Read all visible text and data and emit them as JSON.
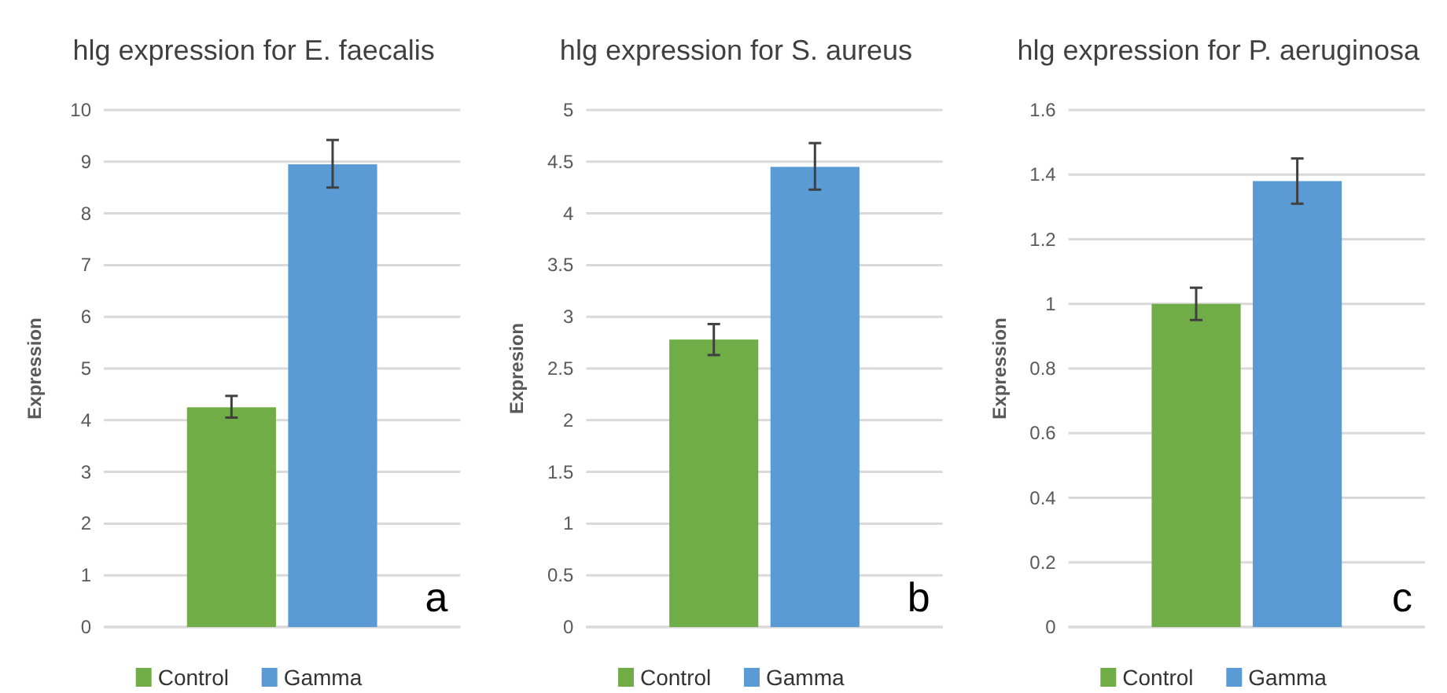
{
  "chart_data": [
    {
      "type": "bar",
      "title": "hlg expression for E. faecalis",
      "ylabel": "Expression",
      "categories": [
        null
      ],
      "series": [
        {
          "name": "Control",
          "color": "#70ad47",
          "values": [
            4.25
          ],
          "errors": [
            [
              4.05,
              4.47
            ]
          ]
        },
        {
          "name": "Gamma",
          "color": "#5b9bd5",
          "values": [
            8.95
          ],
          "errors": [
            [
              8.5,
              9.42
            ]
          ]
        }
      ],
      "ylim": [
        0,
        10
      ],
      "yticks": [
        0,
        1,
        2,
        3,
        4,
        5,
        6,
        7,
        8,
        9,
        10
      ],
      "grid": "y",
      "legend": "bottom",
      "annotations": [
        "a"
      ]
    },
    {
      "type": "bar",
      "title": "hlg expression for S. aureus",
      "ylabel": "Expresion",
      "categories": [
        null
      ],
      "series": [
        {
          "name": "Control",
          "color": "#70ad47",
          "values": [
            2.78
          ],
          "errors": [
            [
              2.63,
              2.93
            ]
          ]
        },
        {
          "name": "Gamma",
          "color": "#5b9bd5",
          "values": [
            4.45
          ],
          "errors": [
            [
              4.23,
              4.68
            ]
          ]
        }
      ],
      "ylim": [
        0,
        5
      ],
      "yticks": [
        0,
        0.5,
        1,
        1.5,
        2,
        2.5,
        3,
        3.5,
        4,
        4.5,
        5
      ],
      "grid": "y",
      "legend": "bottom",
      "annotations": [
        "b"
      ]
    },
    {
      "type": "bar",
      "title": "hlg expression for P. aeruginosa",
      "ylabel": "Expression",
      "categories": [
        null
      ],
      "series": [
        {
          "name": "Control",
          "color": "#70ad47",
          "values": [
            1.0
          ],
          "errors": [
            [
              0.95,
              1.05
            ]
          ]
        },
        {
          "name": "Gamma",
          "color": "#5b9bd5",
          "values": [
            1.38
          ],
          "errors": [
            [
              1.31,
              1.45
            ]
          ]
        }
      ],
      "ylim": [
        0,
        1.6
      ],
      "yticks": [
        0,
        0.2,
        0.4,
        0.6,
        0.8,
        1,
        1.2,
        1.4,
        1.6
      ],
      "grid": "y",
      "legend": "bottom",
      "annotations": [
        "c"
      ]
    }
  ]
}
